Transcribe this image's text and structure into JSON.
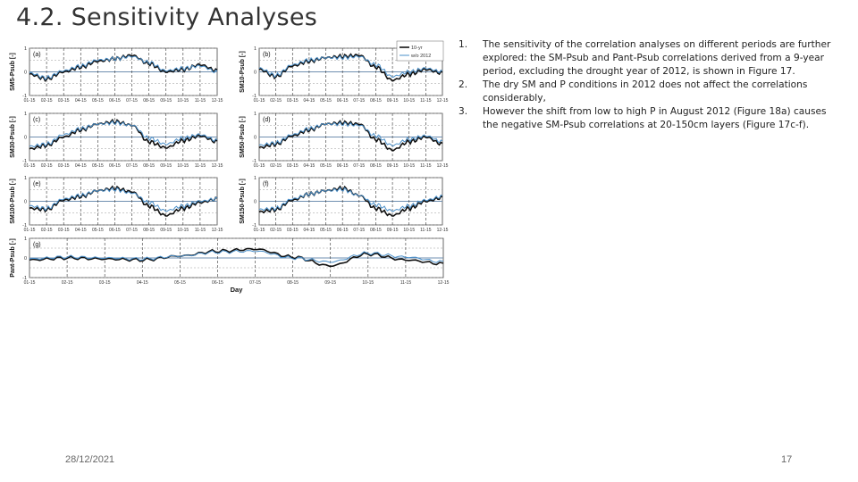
{
  "slide": {
    "title": "4.2. Sensitivity Analyses",
    "date": "28/12/2021",
    "page_number": "17"
  },
  "bullets": [
    {
      "num": "1.",
      "text": "The sensitivity of the correlation analyses on different periods are further explored: the SM-Psub and Pant-Psub correlations derived from a 9-year period, excluding the drought year of 2012, is shown in Figure 17."
    },
    {
      "num": "2.",
      "text": "The dry SM and P conditions in 2012 does not affect the correlations considerably,"
    },
    {
      "num": "3.",
      "text": "However the shift from low to high P in August 2012 (Figure 18a) causes the negative SM-Psub correlations at 20-150cm layers (Figure 17c-f)."
    }
  ],
  "colors": {
    "series_10yr": "#111111",
    "series_wo2012": "#4a8fc9",
    "grid": "#999999",
    "zero_line": "#6f8fb0"
  },
  "chart_data": {
    "type": "line",
    "legend": [
      "10-yr",
      "w/o 2012"
    ],
    "legend_position": "top-right",
    "xlabel": "Day",
    "ylim": [
      -1,
      1
    ],
    "yticks": [
      "1",
      "0.5",
      "0",
      "-0.5",
      "-1"
    ],
    "months": [
      "01-15",
      "02-15",
      "03-15",
      "04-15",
      "05-15",
      "06-15",
      "07-15",
      "08-15",
      "09-15",
      "10-15",
      "11-15",
      "12-15"
    ],
    "grid": true,
    "panels": [
      {
        "label": "(a)",
        "ylabel": "SM5-Psub [-]",
        "series": [
          {
            "name": "10-yr",
            "values": [
              -0.1,
              -0.3,
              0.0,
              0.2,
              0.45,
              0.55,
              0.7,
              0.35,
              0.0,
              0.1,
              0.3,
              0.05
            ]
          },
          {
            "name": "w/o 2012",
            "values": [
              -0.05,
              -0.25,
              0.05,
              0.25,
              0.5,
              0.55,
              0.65,
              0.4,
              0.05,
              0.15,
              0.25,
              0.0
            ]
          }
        ]
      },
      {
        "label": "(b)",
        "ylabel": "SM10-Psub [-]",
        "series": [
          {
            "name": "10-yr",
            "values": [
              0.1,
              -0.2,
              0.25,
              0.45,
              0.6,
              0.65,
              0.7,
              0.2,
              -0.35,
              -0.1,
              0.1,
              -0.05
            ]
          },
          {
            "name": "w/o 2012",
            "values": [
              0.15,
              -0.15,
              0.3,
              0.5,
              0.6,
              0.6,
              0.65,
              0.3,
              -0.2,
              0.0,
              0.15,
              0.0
            ]
          }
        ]
      },
      {
        "label": "(c)",
        "ylabel": "SM30-Psub [-]",
        "series": [
          {
            "name": "10-yr",
            "values": [
              -0.5,
              -0.35,
              0.0,
              0.3,
              0.55,
              0.65,
              0.5,
              -0.2,
              -0.45,
              -0.15,
              0.05,
              -0.2
            ]
          },
          {
            "name": "w/o 2012",
            "values": [
              -0.4,
              -0.3,
              0.1,
              0.35,
              0.55,
              0.6,
              0.5,
              -0.05,
              -0.3,
              -0.05,
              0.1,
              -0.15
            ]
          }
        ]
      },
      {
        "label": "(d)",
        "ylabel": "SM50-Psub [-]",
        "series": [
          {
            "name": "10-yr",
            "values": [
              -0.45,
              -0.3,
              0.05,
              0.3,
              0.55,
              0.6,
              0.55,
              -0.1,
              -0.55,
              -0.2,
              0.0,
              -0.3
            ]
          },
          {
            "name": "w/o 2012",
            "values": [
              -0.35,
              -0.25,
              0.1,
              0.35,
              0.55,
              0.55,
              0.5,
              0.05,
              -0.35,
              -0.1,
              0.05,
              -0.2
            ]
          }
        ]
      },
      {
        "label": "(e)",
        "ylabel": "SM100-Psub [-]",
        "series": [
          {
            "name": "10-yr",
            "values": [
              -0.3,
              -0.35,
              0.05,
              0.2,
              0.45,
              0.55,
              0.4,
              -0.2,
              -0.6,
              -0.3,
              -0.05,
              0.1
            ]
          },
          {
            "name": "w/o 2012",
            "values": [
              -0.2,
              -0.3,
              0.1,
              0.25,
              0.45,
              0.5,
              0.35,
              -0.05,
              -0.4,
              -0.2,
              0.0,
              0.1
            ]
          }
        ]
      },
      {
        "label": "(f)",
        "ylabel": "SM150-Psub [-]",
        "series": [
          {
            "name": "10-yr",
            "values": [
              -0.45,
              -0.35,
              0.05,
              0.3,
              0.45,
              0.55,
              0.25,
              -0.3,
              -0.6,
              -0.3,
              0.0,
              0.15
            ]
          },
          {
            "name": "w/o 2012",
            "values": [
              -0.35,
              -0.3,
              0.1,
              0.3,
              0.45,
              0.5,
              0.25,
              -0.15,
              -0.4,
              -0.2,
              0.05,
              0.2
            ]
          }
        ]
      },
      {
        "label": "(g)",
        "ylabel": "Pant-Psub [-]",
        "series": [
          {
            "name": "10-yr",
            "values": [
              -0.1,
              0.0,
              -0.05,
              -0.1,
              0.1,
              0.35,
              0.45,
              0.05,
              -0.4,
              0.2,
              -0.1,
              -0.3
            ]
          },
          {
            "name": "w/o 2012",
            "values": [
              -0.05,
              0.05,
              0.0,
              -0.05,
              0.1,
              0.3,
              0.35,
              0.0,
              -0.2,
              0.25,
              0.05,
              -0.2
            ]
          }
        ]
      }
    ]
  }
}
